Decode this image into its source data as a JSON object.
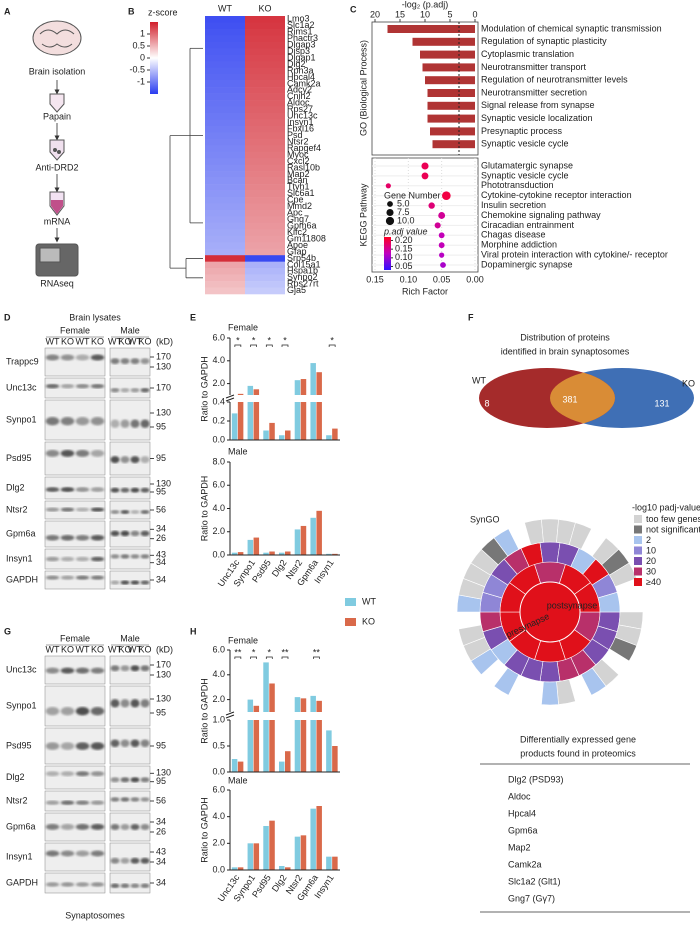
{
  "figure": {
    "A": {
      "letter": "A",
      "steps": [
        "Brain isolation",
        "Papain",
        "Anti-DRD2",
        "mRNA",
        "RNAseq"
      ]
    },
    "B": {
      "letter": "B",
      "colorbar": {
        "title": "z-score",
        "lim": [
          -1.5,
          1.5
        ],
        "ticks": [
          1,
          0.5,
          0,
          -0.5,
          -1
        ],
        "colors": [
          "#2a3cf0",
          "#ffffff",
          "#d11f2b"
        ]
      },
      "columns": [
        "WT",
        "KO"
      ],
      "genes": [
        "Lmo3",
        "Slc1a2",
        "Rims1",
        "Phactr3",
        "Dlgap3",
        "Disp3",
        "Dlgap1",
        "Dlg2",
        "Rph3a",
        "Hpcal4",
        "Camk2a",
        "Adcy2",
        "Cnih2",
        "Aldoc",
        "Rps27",
        "Unc13c",
        "Insyn1",
        "Fbxl16",
        "Psd",
        "Ntsr2",
        "Rapgef4",
        "Myoc",
        "Cxcl2",
        "Rasl10b",
        "Map2",
        "Bcan",
        "Ttyh1",
        "Slc6a1",
        "Cpe",
        "Mmd2",
        "Apc",
        "Gng7",
        "Gpm6a",
        "Kifc2",
        "Gm11808",
        "Apoe",
        "Gfap",
        "Srp54b",
        "Col15a1",
        "Hspa1b",
        "Synpo2",
        "Rps27rt",
        "Gja5"
      ],
      "values": [
        [
          -1.35,
          -1.33,
          -1.3,
          -1.28,
          -1.26,
          -1.24,
          -1.22,
          -1.2,
          -1.18,
          -1.16,
          -1.14,
          -1.12,
          -1.1,
          -1.08,
          -1.06,
          -1.04,
          -1.02,
          -1.0,
          -0.98,
          -0.96,
          -0.94,
          -0.92,
          -0.9,
          -0.88,
          -0.86,
          -0.84,
          -0.82,
          -0.8,
          -0.78,
          -0.76,
          -0.74,
          -0.72,
          -0.7,
          -0.68,
          -0.66,
          -0.64,
          -0.62,
          1.4,
          0.6,
          0.55,
          0.5,
          0.45,
          0.4
        ],
        [
          1.35,
          1.33,
          1.3,
          1.28,
          1.26,
          1.24,
          1.22,
          1.2,
          1.18,
          1.16,
          1.14,
          1.12,
          1.1,
          1.08,
          1.06,
          1.04,
          1.02,
          1.0,
          0.98,
          0.96,
          0.94,
          0.92,
          0.9,
          0.88,
          0.86,
          0.84,
          0.82,
          0.8,
          0.78,
          0.76,
          0.74,
          0.72,
          0.7,
          0.68,
          0.66,
          0.64,
          0.62,
          -1.4,
          -0.6,
          -0.55,
          -0.5,
          -0.45,
          -0.4
        ]
      ]
    },
    "C": {
      "letter": "C",
      "go": {
        "axis_label": "-log₂ (p.adj)",
        "ylabel": "GO (Biological Process)",
        "xlim": [
          20,
          0
        ],
        "xticks": [
          20,
          15,
          10,
          5,
          0
        ],
        "threshold": 3.2,
        "color": "#b03434",
        "terms": [
          "Modulation of chemical synaptic transmission",
          "Regulation of synaptic plasticity",
          "Cytoplasmic translation",
          "Neurotransmitter transport",
          "Regulation of neurotransmitter levels",
          "Neurotransmitter secretion",
          "Signal release from synapse",
          "Synaptic vesicle localization",
          "Presynaptic process",
          "Synaptic vesicle cycle"
        ],
        "values": [
          17.5,
          12.5,
          11,
          10.5,
          10,
          9.5,
          9.5,
          9.5,
          9,
          8.5
        ]
      },
      "kegg": {
        "ylabel": "KEGG Pathway",
        "xlabel": "Rich Factor",
        "xlim": [
          0.15,
          0
        ],
        "xticks": [
          0.15,
          {
            "value": 0.1,
            "label": "0.10"
          },
          0.05,
          {
            "value": 0,
            "label": "0.00"
          }
        ],
        "terms": [
          "Glutamatergic synapse",
          "Synaptic vesicle cycle",
          "Phototransduction",
          "Cytokine-cytokine receptor interaction",
          "Insulin secretion",
          "Chemokine signaling pathway",
          "Ciracadian entrainment",
          "Chagas disease",
          "Morphine addiction",
          "Viral protein interaction with cytokine/- receptor",
          "Dopaminergic synapse"
        ],
        "rich_factor": [
          0.075,
          0.075,
          0.13,
          0.043,
          0.065,
          0.05,
          0.056,
          0.05,
          0.05,
          0.05,
          0.048
        ],
        "gene_number": [
          7.5,
          7,
          4,
          11,
          6,
          7,
          5.5,
          5,
          5,
          4,
          5
        ],
        "padj": [
          0.06,
          0.06,
          0.07,
          0.05,
          0.08,
          0.1,
          0.1,
          0.12,
          0.12,
          0.13,
          0.14
        ],
        "size_title": "Gene Number",
        "size_ticks": [
          {
            "value": 5,
            "label": "5.0"
          },
          7.5,
          {
            "value": 10,
            "label": "10.0"
          }
        ],
        "color_title": "p.adj value",
        "padj_lim": [
          0.03,
          0.22
        ],
        "padj_colors": [
          "#ff0022",
          "#c000c0",
          "#2f10ff"
        ],
        "color_ticks": [
          {
            "value": 0.2,
            "label": "0.20"
          },
          0.15,
          {
            "value": 0.1,
            "label": "0.10"
          },
          0.05
        ]
      }
    },
    "D": {
      "letter": "D",
      "title": "Brain lysates",
      "groups": [
        "Female",
        "Male"
      ],
      "lanes": [
        "WT",
        "KO",
        "WT",
        "KO"
      ],
      "unit": "(kD)",
      "rows": [
        {
          "name": "Trappc9",
          "markers": [
            170,
            130
          ]
        },
        {
          "name": "Unc13c",
          "markers": [
            170
          ]
        },
        {
          "name": "Synpo1",
          "markers": [
            130,
            95
          ]
        },
        {
          "name": "Psd95",
          "markers": [
            95
          ]
        },
        {
          "name": "Dlg2",
          "markers": [
            130,
            95
          ]
        },
        {
          "name": "Ntsr2",
          "markers": [
            56
          ]
        },
        {
          "name": "Gpm6a",
          "markers": [
            34,
            26
          ]
        },
        {
          "name": "Insyn1",
          "markers": [
            43,
            34
          ]
        },
        {
          "name": "GAPDH",
          "markers": [
            34
          ]
        }
      ]
    },
    "E": {
      "letter": "E",
      "series": [
        {
          "name": "WT",
          "color": "#80cbe0"
        },
        {
          "name": "KO",
          "color": "#d9694a"
        }
      ],
      "charts": [
        {
          "title": "Female",
          "ylabel": "Ratio to GAPDH",
          "segments": [
            {
              "ylim": [
                1,
                6
              ],
              "yticks": [
                {
                  "value": 2,
                  "label": "2.0"
                },
                {
                  "value": 4,
                  "label": "4.0"
                },
                {
                  "value": 6,
                  "label": "6.0"
                }
              ]
            },
            {
              "ylim": [
                0,
                0.4
              ],
              "yticks": [
                {
                  "value": 0,
                  "label": "0.0"
                },
                0.2,
                0.4
              ]
            }
          ],
          "values": [
            [
              0.28,
              1.8,
              0.1,
              0.05,
              2.3,
              3.8,
              0.05
            ],
            [
              1.1,
              1.5,
              0.18,
              0.1,
              2.4,
              3.0,
              0.12
            ]
          ],
          "significance": [
            "*",
            "*",
            "*",
            "*",
            null,
            null,
            "*"
          ]
        },
        {
          "title": "Male",
          "ylabel": "Ratio to GAPDH",
          "categories": [
            "Unc13c",
            "Synpo1",
            "Psd95",
            "Dlg2",
            "Ntsr2",
            "Gpm6a",
            "Insyn1"
          ],
          "segments": [
            {
              "ylim": [
                0,
                8
              ],
              "yticks": [
                {
                  "value": 0,
                  "label": "0.0"
                },
                {
                  "value": 2,
                  "label": "2.0"
                },
                {
                  "value": 4,
                  "label": "4.0"
                },
                {
                  "value": 6,
                  "label": "6.0"
                },
                {
                  "value": 8,
                  "label": "8.0"
                }
              ]
            }
          ],
          "values": [
            [
              0.2,
              1.3,
              0.2,
              0.2,
              2.2,
              3.2,
              0.1
            ],
            [
              0.25,
              1.5,
              0.3,
              0.3,
              2.5,
              3.8,
              0.1
            ]
          ]
        }
      ]
    },
    "F": {
      "letter": "F",
      "venn": {
        "title": [
          "Distribution of proteins",
          "identified in brain synaptosomes"
        ],
        "sets": [
          "WT",
          "KO"
        ],
        "only_wt": 8,
        "both": 381,
        "only_ko": 131
      },
      "syngo": {
        "title": "SynGO",
        "legend_title": "-log10 padj-value",
        "labels": [
          "presynapse",
          "postsynapse"
        ],
        "legend": [
          {
            "label": "too few genes",
            "color": "#d3d3d3"
          },
          {
            "label": "not significant",
            "color": "#777777"
          },
          {
            "label": "2",
            "color": "#a8c4ee"
          },
          {
            "label": "10",
            "color": "#8f86d6"
          },
          {
            "label": "20",
            "color": "#7a4fb0"
          },
          {
            "label": "30",
            "color": "#b8306a"
          },
          {
            "label": "≥40",
            "color": "#e0101a"
          }
        ]
      },
      "table": {
        "title": [
          "Differentially expressed gene",
          "products found in proteomics"
        ],
        "items": [
          "Dlg2 (PSD93)",
          "Aldoc",
          "Hpcal4",
          "Gpm6a",
          "Map2",
          "Camk2a",
          "Slc1a2 (Glt1)",
          "Gng7 (Gγ7)"
        ]
      }
    },
    "G": {
      "letter": "G",
      "groups": [
        "Female",
        "Male"
      ],
      "lanes": [
        "WT",
        "KO",
        "WT",
        "KO"
      ],
      "unit": "(kD)",
      "footer": "Synaptosomes",
      "rows": [
        {
          "name": "Unc13c",
          "markers": [
            170,
            130
          ]
        },
        {
          "name": "Synpo1",
          "markers": [
            130,
            95
          ]
        },
        {
          "name": "Psd95",
          "markers": [
            95
          ]
        },
        {
          "name": "Dlg2",
          "markers": [
            130,
            95
          ]
        },
        {
          "name": "Ntsr2",
          "markers": [
            56
          ]
        },
        {
          "name": "Gpm6a",
          "markers": [
            34,
            26
          ]
        },
        {
          "name": "Insyn1",
          "markers": [
            43,
            34
          ]
        },
        {
          "name": "GAPDH",
          "markers": [
            34
          ]
        }
      ]
    },
    "H": {
      "letter": "H",
      "charts": [
        {
          "title": "Female",
          "ylabel": "Ratio to GAPDH",
          "segments": [
            {
              "ylim": [
                1,
                6
              ],
              "yticks": [
                {
                  "value": 2,
                  "label": "2.0"
                },
                {
                  "value": 4,
                  "label": "4.0"
                },
                {
                  "value": 6,
                  "label": "6.0"
                }
              ]
            },
            {
              "ylim": [
                0,
                1
              ],
              "yticks": [
                {
                  "value": 0,
                  "label": "0.0"
                },
                0.5,
                {
                  "value": 1,
                  "label": "1.0"
                }
              ]
            }
          ],
          "values": [
            [
              0.25,
              2.0,
              5.0,
              0.2,
              2.2,
              2.3,
              0.8
            ],
            [
              0.2,
              1.5,
              3.3,
              0.4,
              2.1,
              1.9,
              0.5
            ]
          ],
          "significance": [
            "**",
            "*",
            "*",
            "**",
            null,
            "**",
            null
          ]
        },
        {
          "title": "Male",
          "ylabel": "Ratio to GAPDH",
          "categories": [
            "Unc13c",
            "Synpo1",
            "Psd95",
            "Dlg2",
            "Ntsr2",
            "Gpm6a",
            "Insyn1"
          ],
          "segments": [
            {
              "ylim": [
                0,
                6
              ],
              "yticks": [
                {
                  "value": 0,
                  "label": "0.0"
                },
                {
                  "value": 2,
                  "label": "2.0"
                },
                {
                  "value": 4,
                  "label": "4.0"
                },
                {
                  "value": 6,
                  "label": "6.0"
                }
              ]
            }
          ],
          "values": [
            [
              0.2,
              2.0,
              3.3,
              0.3,
              2.5,
              4.6,
              1.0
            ],
            [
              0.2,
              2.0,
              3.7,
              0.2,
              2.6,
              4.8,
              1.0
            ]
          ]
        }
      ]
    }
  }
}
